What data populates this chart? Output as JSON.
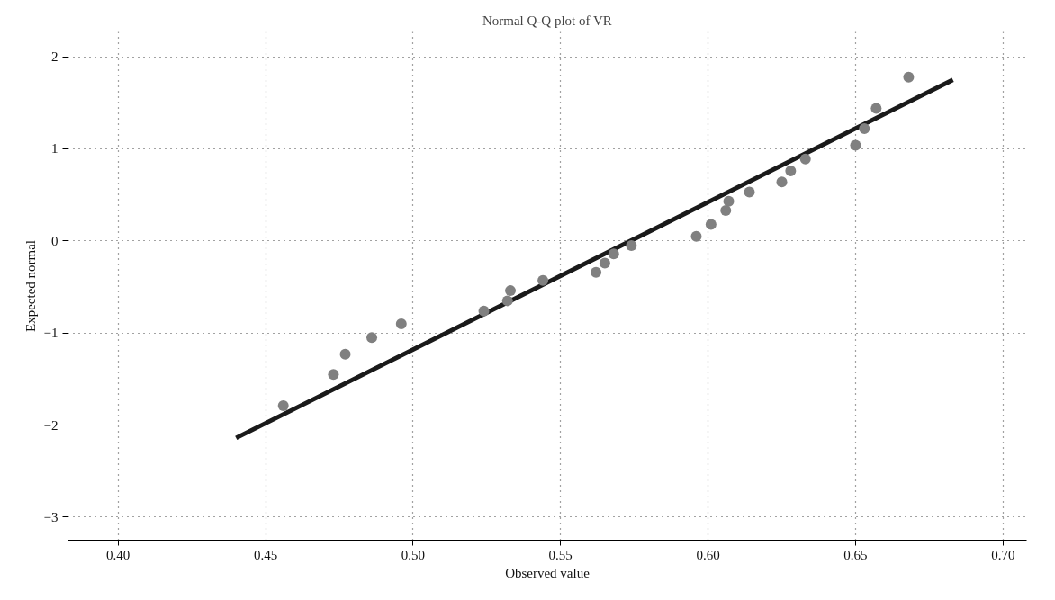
{
  "chart_data": {
    "type": "scatter",
    "title": "Normal Q-Q plot of VR",
    "xlabel": "Observed value",
    "ylabel": "Expected normal",
    "xlim": [
      0.383,
      0.708
    ],
    "ylim": [
      -3.25,
      2.27
    ],
    "xticks": [
      {
        "value": 0.4,
        "label": "0.40"
      },
      {
        "value": 0.45,
        "label": "0.45"
      },
      {
        "value": 0.5,
        "label": "0.50"
      },
      {
        "value": 0.55,
        "label": "0.55"
      },
      {
        "value": 0.6,
        "label": "0.60"
      },
      {
        "value": 0.65,
        "label": "0.65"
      },
      {
        "value": 0.7,
        "label": "0.70"
      }
    ],
    "yticks": [
      {
        "value": -3,
        "label": "−3"
      },
      {
        "value": -2,
        "label": "−2"
      },
      {
        "value": -1,
        "label": "−1"
      },
      0,
      1,
      2
    ],
    "grid": true,
    "series": [
      {
        "marker": "circle",
        "color": "#808080",
        "x": [
          0.456,
          0.473,
          0.477,
          0.486,
          0.496,
          0.524,
          0.532,
          0.533,
          0.544,
          0.562,
          0.565,
          0.568,
          0.574,
          0.596,
          0.601,
          0.606,
          0.607,
          0.614,
          0.625,
          0.628,
          0.633,
          0.65,
          0.653,
          0.657,
          0.668
        ],
        "values": [
          -1.79,
          -1.45,
          -1.23,
          -1.05,
          -0.9,
          -0.76,
          -0.65,
          -0.54,
          -0.43,
          -0.34,
          -0.24,
          -0.14,
          -0.05,
          0.05,
          0.18,
          0.33,
          0.43,
          0.53,
          0.64,
          0.76,
          0.89,
          1.04,
          1.22,
          1.44,
          1.78
        ]
      },
      {
        "type": "line",
        "marker": "none",
        "color": "#1a1a1a",
        "x": [
          0.44,
          0.683
        ],
        "values": [
          -2.14,
          1.75
        ]
      }
    ]
  }
}
